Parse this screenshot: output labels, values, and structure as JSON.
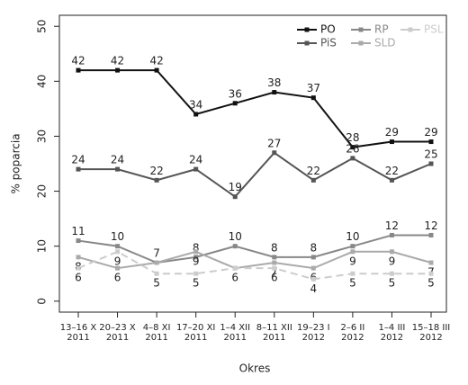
{
  "chart_data": {
    "type": "line",
    "y_label": "% poparcia",
    "x_label": "Okres",
    "categories": [
      "13–16 X\n2011",
      "20–23 X\n2011",
      "4–8 XI\n2011",
      "17–20 XI\n2011",
      "1–4 XII\n2011",
      "8–11 XII\n2011",
      "19–23 I\n2012",
      "2–6 II\n2012",
      "1–4 III\n2012",
      "15–18 III\n2012"
    ],
    "series": [
      {
        "name": "PO",
        "color": "#111111",
        "values": [
          42,
          42,
          42,
          34,
          36,
          38,
          37,
          28,
          29,
          29
        ]
      },
      {
        "name": "PiS",
        "color": "#555555",
        "values": [
          24,
          24,
          22,
          24,
          19,
          27,
          22,
          26,
          22,
          25
        ]
      },
      {
        "name": "RP",
        "color": "#888888",
        "values": [
          11,
          10,
          7,
          8,
          10,
          8,
          8,
          10,
          12,
          12
        ]
      },
      {
        "name": "SLD",
        "color": "#aaaaaa",
        "values": [
          8,
          6,
          7,
          9,
          6,
          7,
          6,
          9,
          9,
          7
        ]
      },
      {
        "name": "PSL",
        "color": "#cccccc",
        "dashed": true,
        "values": [
          6,
          9,
          5,
          5,
          6,
          6,
          4,
          5,
          5,
          5
        ]
      }
    ],
    "ylim": [
      -2,
      52
    ],
    "yticks": [
      0,
      10,
      20,
      30,
      40,
      50
    ],
    "grid": false,
    "legend": "top-right"
  }
}
